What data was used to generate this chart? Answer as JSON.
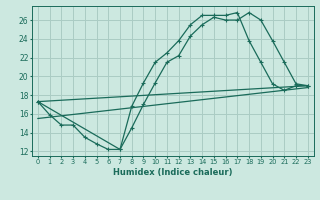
{
  "title": "",
  "xlabel": "Humidex (Indice chaleur)",
  "bg_color": "#cce8e0",
  "grid_color": "#aaccC4",
  "line_color": "#1a6b5a",
  "xlim": [
    -0.5,
    23.5
  ],
  "ylim": [
    11.5,
    27.5
  ],
  "xticks": [
    0,
    1,
    2,
    3,
    4,
    5,
    6,
    7,
    8,
    9,
    10,
    11,
    12,
    13,
    14,
    15,
    16,
    17,
    18,
    19,
    20,
    21,
    22,
    23
  ],
  "yticks": [
    12,
    14,
    16,
    18,
    20,
    22,
    24,
    26
  ],
  "line1_x": [
    0,
    1,
    2,
    3,
    4,
    5,
    6,
    7,
    8,
    9,
    10,
    11,
    12,
    13,
    14,
    15,
    16,
    17,
    18,
    19,
    20,
    21,
    22,
    23
  ],
  "line1_y": [
    17.3,
    15.9,
    14.8,
    14.8,
    13.5,
    12.8,
    12.2,
    12.2,
    14.5,
    17.0,
    19.3,
    21.5,
    22.2,
    24.3,
    25.5,
    26.3,
    26.0,
    26.0,
    26.8,
    26.0,
    23.8,
    21.5,
    19.2,
    19.0
  ],
  "line2_x": [
    0,
    7,
    8,
    9,
    10,
    11,
    12,
    13,
    14,
    15,
    16,
    17,
    18,
    19,
    20,
    21,
    22,
    23
  ],
  "line2_y": [
    17.3,
    12.2,
    16.8,
    19.3,
    21.5,
    22.5,
    23.8,
    25.5,
    26.5,
    26.5,
    26.5,
    26.8,
    23.8,
    21.5,
    19.2,
    18.5,
    19.0,
    19.0
  ],
  "trend1_x": [
    0,
    23
  ],
  "trend1_y": [
    15.5,
    18.8
  ],
  "trend2_x": [
    0,
    23
  ],
  "trend2_y": [
    17.3,
    19.0
  ]
}
